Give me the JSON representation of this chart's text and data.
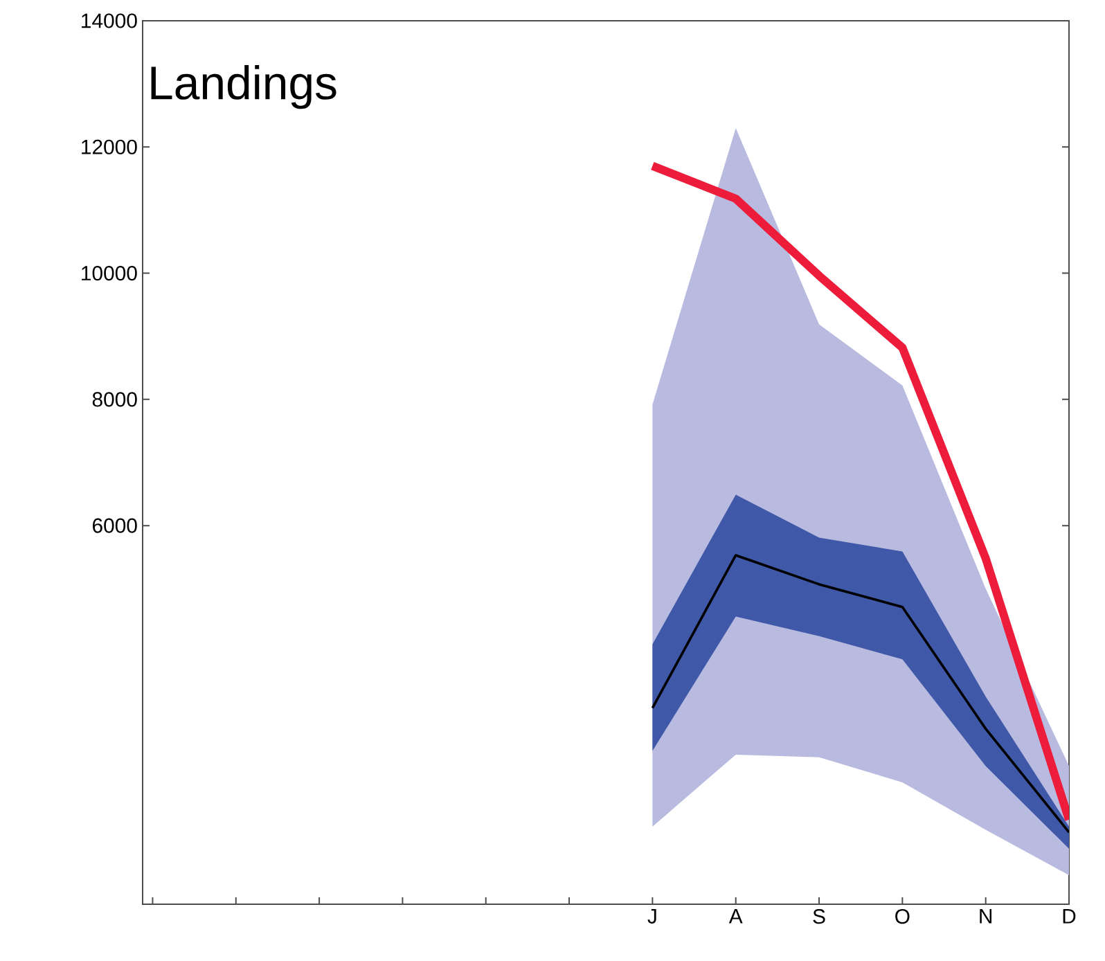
{
  "chart_data": {
    "type": "line",
    "title": "Landings",
    "categories": [
      null,
      null,
      null,
      null,
      null,
      null,
      "J",
      "A",
      "S",
      "O",
      "N",
      "D"
    ],
    "ylim": [
      0,
      14000
    ],
    "yticks": [
      6000,
      8000,
      10000,
      12000,
      14000
    ],
    "grid": false,
    "series": [
      {
        "type": "area",
        "color": "#b8bbdf",
        "values": [
          null,
          null,
          null,
          null,
          null,
          null,
          null,
          null,
          null,
          null,
          null,
          null
        ],
        "lower": [
          null,
          null,
          null,
          null,
          null,
          null,
          1230,
          2370,
          2330,
          1930,
          1180,
          460
        ],
        "upper": [
          null,
          null,
          null,
          null,
          null,
          null,
          7920,
          12300,
          9190,
          8220,
          5000,
          2190
        ]
      },
      {
        "type": "area",
        "color": "#4058a8",
        "values": [
          null,
          null,
          null,
          null,
          null,
          null,
          null,
          null,
          null,
          null,
          null,
          null
        ],
        "lower": [
          null,
          null,
          null,
          null,
          null,
          null,
          2430,
          4560,
          4250,
          3880,
          2190,
          880
        ],
        "upper": [
          null,
          null,
          null,
          null,
          null,
          null,
          4120,
          6490,
          5810,
          5590,
          3290,
          1230
        ]
      },
      {
        "color": "#000000",
        "values": [
          null,
          null,
          null,
          null,
          null,
          null,
          3110,
          5530,
          5070,
          4710,
          2780,
          1140
        ]
      },
      {
        "color": "#ec1c3a",
        "values": [
          null,
          null,
          null,
          null,
          null,
          null,
          11700,
          11180,
          9960,
          8820,
          5480,
          1340
        ]
      }
    ]
  }
}
